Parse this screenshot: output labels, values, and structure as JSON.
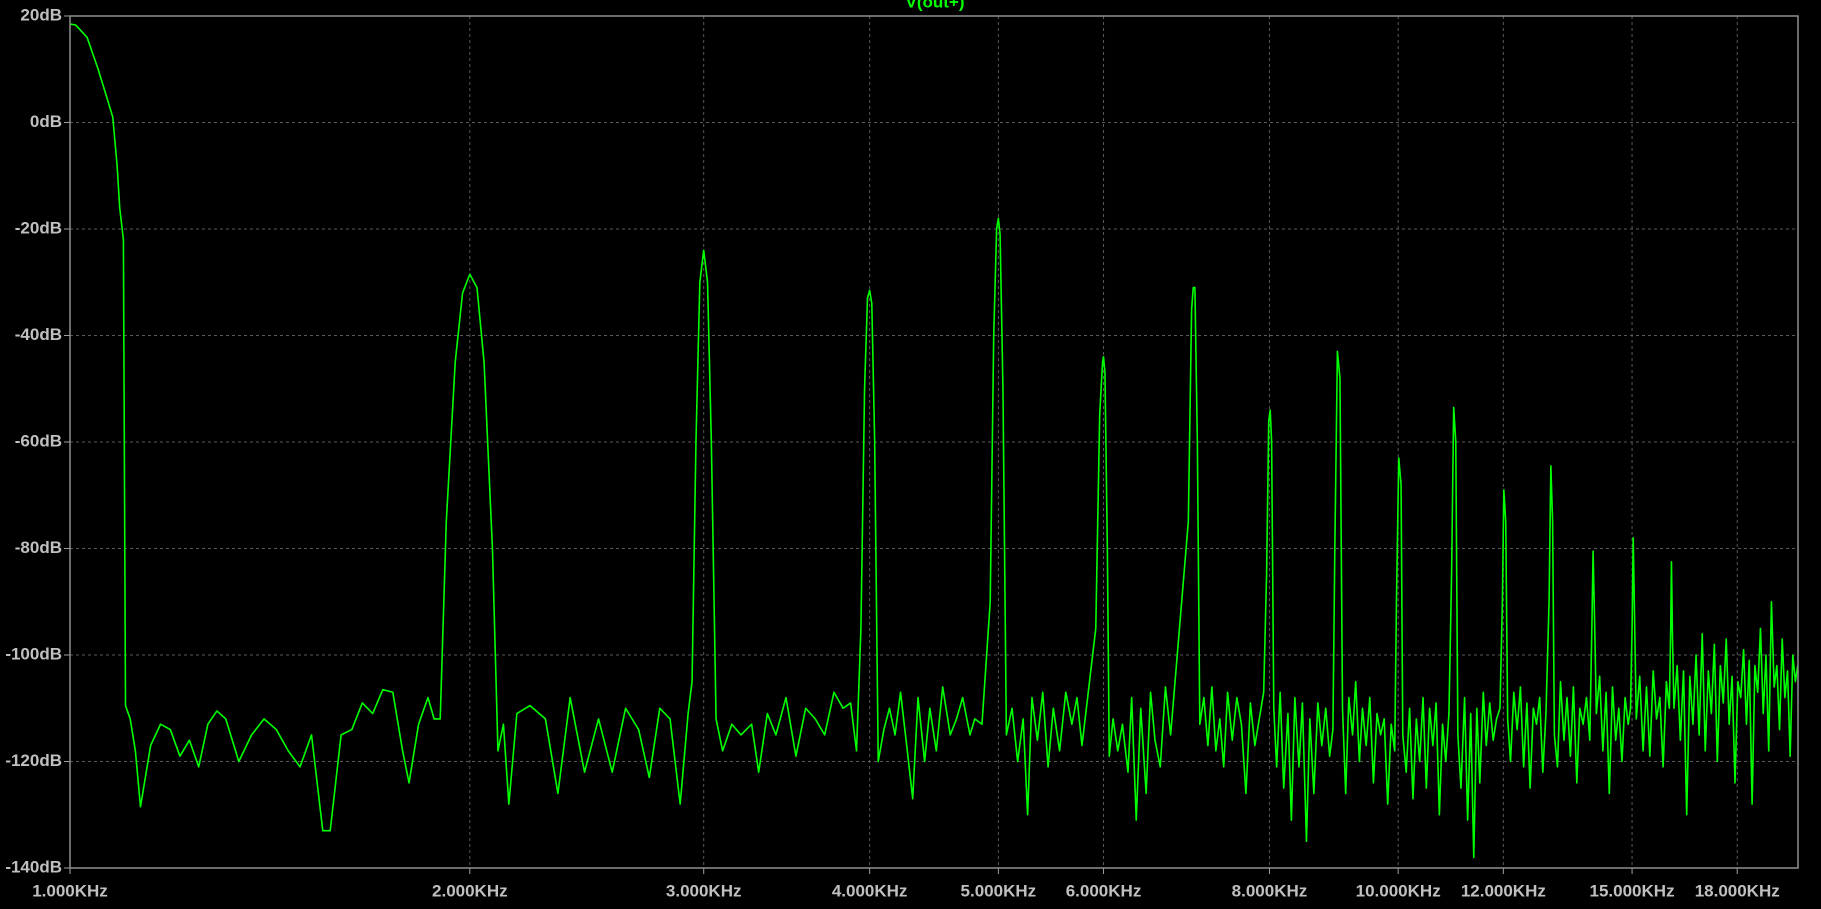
{
  "chart_data": {
    "type": "line",
    "log_x": true,
    "grid": true,
    "background": "#000000",
    "xlim": [
      1000,
      20000
    ],
    "ylim": [
      -140,
      20
    ],
    "xticks": [
      {
        "value": 1000,
        "label": "1.000KHz"
      },
      {
        "value": 2000,
        "label": "2.000KHz"
      },
      {
        "value": 3000,
        "label": "3.000KHz"
      },
      {
        "value": 4000,
        "label": "4.000KHz"
      },
      {
        "value": 5000,
        "label": "5.000KHz"
      },
      {
        "value": 6000,
        "label": "6.000KHz"
      },
      {
        "value": 8000,
        "label": "8.000KHz"
      },
      {
        "value": 10000,
        "label": "10.000KHz"
      },
      {
        "value": 12000,
        "label": "12.000KHz"
      },
      {
        "value": 15000,
        "label": "15.000KHz"
      },
      {
        "value": 18000,
        "label": "18.000KHz"
      }
    ],
    "yticks": [
      {
        "value": 20,
        "label": "20dB"
      },
      {
        "value": 0,
        "label": "0dB"
      },
      {
        "value": -20,
        "label": "-20dB"
      },
      {
        "value": -40,
        "label": "-40dB"
      },
      {
        "value": -60,
        "label": "-60dB"
      },
      {
        "value": -80,
        "label": "-80dB"
      },
      {
        "value": -100,
        "label": "-100dB"
      },
      {
        "value": -120,
        "label": "-120dB"
      },
      {
        "value": -140,
        "label": "-140dB"
      }
    ],
    "x": [
      1000,
      1010,
      1030,
      1050,
      1065,
      1077,
      1085,
      1090,
      1097,
      1101,
      1110,
      1120,
      1130,
      1150,
      1170,
      1190,
      1210,
      1230,
      1250,
      1270,
      1290,
      1310,
      1340,
      1370,
      1400,
      1430,
      1460,
      1490,
      1520,
      1550,
      1570,
      1600,
      1630,
      1660,
      1690,
      1720,
      1750,
      1780,
      1800,
      1830,
      1860,
      1880,
      1900,
      1920,
      1950,
      1975,
      2000,
      2025,
      2050,
      2080,
      2100,
      2120,
      2140,
      2170,
      2220,
      2280,
      2330,
      2380,
      2440,
      2500,
      2560,
      2620,
      2680,
      2730,
      2780,
      2830,
      2880,
      2920,
      2940,
      2960,
      2980,
      3000,
      3020,
      3040,
      3065,
      3100,
      3150,
      3200,
      3260,
      3300,
      3350,
      3400,
      3460,
      3520,
      3580,
      3640,
      3700,
      3760,
      3820,
      3870,
      3910,
      3940,
      3965,
      3985,
      4000,
      4015,
      4035,
      4060,
      4100,
      4140,
      4180,
      4220,
      4270,
      4310,
      4350,
      4400,
      4440,
      4490,
      4540,
      4600,
      4650,
      4700,
      4760,
      4800,
      4860,
      4930,
      4960,
      4985,
      5000,
      5015,
      5040,
      5070,
      5120,
      5170,
      5220,
      5260,
      5300,
      5350,
      5400,
      5450,
      5500,
      5560,
      5620,
      5680,
      5730,
      5780,
      5920,
      5960,
      5990,
      6000,
      6015,
      6040,
      6060,
      6100,
      6150,
      6200,
      6260,
      6300,
      6350,
      6400,
      6460,
      6510,
      6560,
      6620,
      6680,
      6740,
      6950,
      6990,
      7010,
      7030,
      7060,
      7090,
      7140,
      7190,
      7240,
      7290,
      7340,
      7390,
      7440,
      7500,
      7560,
      7620,
      7680,
      7740,
      7800,
      7860,
      7920,
      7960,
      7990,
      8010,
      8030,
      8060,
      8100,
      8150,
      8200,
      8260,
      8310,
      8360,
      8420,
      8470,
      8530,
      8580,
      8640,
      8700,
      8760,
      8820,
      8880,
      8930,
      8960,
      9000,
      9040,
      9080,
      9130,
      9180,
      9240,
      9290,
      9350,
      9400,
      9460,
      9520,
      9580,
      9640,
      9700,
      9760,
      9820,
      9880,
      9940,
      9970,
      10010,
      10050,
      10080,
      10140,
      10200,
      10260,
      10320,
      10380,
      10440,
      10500,
      10560,
      10620,
      10680,
      10740,
      10800,
      10860,
      10920,
      10970,
      11010,
      11050,
      11090,
      11150,
      11220,
      11280,
      11340,
      11400,
      11460,
      11520,
      11590,
      11650,
      11720,
      11790,
      11860,
      11930,
      11980,
      12010,
      12050,
      12090,
      12150,
      12220,
      12290,
      12360,
      12430,
      12500,
      12570,
      12640,
      12710,
      12780,
      12850,
      12920,
      12990,
      13030,
      13070,
      13110,
      13180,
      13250,
      13330,
      13400,
      13480,
      13550,
      13630,
      13700,
      13780,
      13860,
      13940,
      13990,
      14020,
      14060,
      14100,
      14180,
      14260,
      14340,
      14420,
      14500,
      14580,
      14660,
      14740,
      14820,
      14900,
      14960,
      15000,
      15030,
      15070,
      15110,
      15200,
      15290,
      15380,
      15470,
      15560,
      15650,
      15740,
      15830,
      15920,
      16000,
      16040,
      16060,
      16090,
      16130,
      16220,
      16310,
      16400,
      16490,
      16580,
      16670,
      16760,
      16850,
      16940,
      17030,
      17120,
      17210,
      17300,
      17390,
      17480,
      17570,
      17660,
      17750,
      17840,
      17930,
      18020,
      18110,
      18200,
      18290,
      18380,
      18470,
      18560,
      18650,
      18740,
      18830,
      18920,
      19010,
      19100,
      19190,
      19280,
      19370,
      19460,
      19550,
      19640,
      19730,
      19820,
      19910,
      19990
    ],
    "series": [
      {
        "name": "V(out+)",
        "color": "#00ff00",
        "values": [
          18.5,
          18.3,
          16,
          10,
          5,
          1,
          -8,
          -16,
          -22,
          -109.5,
          -112,
          -118,
          -128.5,
          -117,
          -113,
          -114,
          -119,
          -116,
          -121,
          -113,
          -110.5,
          -112,
          -120,
          -115,
          -112,
          -114,
          -118,
          -121,
          -115,
          -133,
          -133,
          -115,
          -114,
          -109,
          -111,
          -106.5,
          -107,
          -118,
          -124,
          -113,
          -108,
          -112,
          -112,
          -75,
          -45,
          -32,
          -28.5,
          -31,
          -45,
          -80,
          -118,
          -113,
          -128,
          -111,
          -109.5,
          -112,
          -126,
          -108,
          -122,
          -112,
          -122,
          -110,
          -114,
          -123,
          -110,
          -112,
          -128,
          -111,
          -105,
          -60,
          -30,
          -24,
          -30,
          -60,
          -112,
          -118,
          -113,
          -115,
          -113,
          -122,
          -111,
          -115,
          -108,
          -119,
          -110,
          -112,
          -115,
          -107,
          -110,
          -109,
          -118,
          -95,
          -50,
          -33,
          -31.5,
          -34,
          -60,
          -120,
          -114,
          -110,
          -115,
          -107,
          -118,
          -127,
          -108,
          -120,
          -110,
          -118,
          -106,
          -115,
          -112,
          -108,
          -115,
          -112,
          -113,
          -90,
          -40,
          -20,
          -18,
          -21,
          -50,
          -115,
          -110,
          -120,
          -112,
          -130,
          -108,
          -116,
          -107,
          -121,
          -110,
          -118,
          -107,
          -113,
          -108,
          -117,
          -95,
          -55,
          -45,
          -44,
          -47,
          -80,
          -119,
          -112,
          -118,
          -113,
          -122,
          -108,
          -131,
          -110,
          -126,
          -107,
          -116,
          -121,
          -106,
          -115,
          -75,
          -35,
          -31,
          -31,
          -60,
          -113,
          -108,
          -117,
          -106,
          -118,
          -112,
          -121,
          -107,
          -116,
          -108,
          -113,
          -126,
          -109,
          -117,
          -112,
          -107,
          -85,
          -56,
          -54,
          -60,
          -110,
          -121,
          -107,
          -125,
          -111,
          -131,
          -108,
          -121,
          -109,
          -135,
          -112,
          -126,
          -109,
          -117,
          -110,
          -119,
          -114,
          -80,
          -43,
          -48,
          -110,
          -126,
          -108,
          -115,
          -105,
          -120,
          -110,
          -117,
          -108,
          -124,
          -111,
          -115,
          -112,
          -128,
          -113,
          -118,
          -90,
          -63,
          -68,
          -115,
          -122,
          -110,
          -127,
          -112,
          -120,
          -108,
          -125,
          -110,
          -117,
          -109,
          -130,
          -113,
          -120,
          -111,
          -85,
          -53.5,
          -60,
          -115,
          -125,
          -108,
          -131,
          -111,
          -138,
          -110,
          -124,
          -107,
          -117,
          -109,
          -116,
          -112,
          -110,
          -90,
          -69,
          -75,
          -112,
          -120,
          -107,
          -114,
          -106,
          -121,
          -109,
          -125,
          -110,
          -113,
          -108,
          -122,
          -111,
          -90,
          -64.5,
          -75,
          -115,
          -121,
          -105,
          -116,
          -108,
          -119,
          -106,
          -124,
          -110,
          -113,
          -108,
          -116,
          -95,
          -80.5,
          -95,
          -111,
          -104,
          -118,
          -107,
          -126,
          -106,
          -116,
          -110,
          -120,
          -108,
          -113,
          -110,
          -95,
          -78,
          -95,
          -112,
          -104,
          -118,
          -106,
          -119,
          -103,
          -112,
          -108,
          -121,
          -105,
          -110,
          -95,
          -82.5,
          -97,
          -110,
          -102,
          -116,
          -103,
          -130,
          -104,
          -113,
          -100,
          -115,
          -96,
          -118,
          -103,
          -111,
          -98,
          -120,
          -102,
          -109,
          -97,
          -113,
          -104,
          -124,
          -105,
          -108,
          -99,
          -113,
          -101,
          -128,
          -102,
          -107,
          -95,
          -111,
          -100,
          -118,
          -90,
          -106,
          -102,
          -114,
          -97,
          -108,
          -103,
          -119,
          -100,
          -105,
          -102
        ]
      }
    ]
  }
}
